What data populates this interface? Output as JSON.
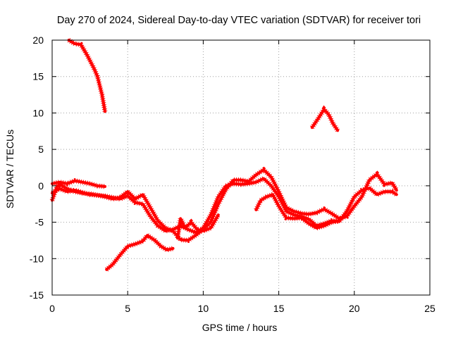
{
  "chart_data": {
    "type": "scatter",
    "title": "Day 270 of 2024, Sidereal Day-to-day VTEC variation (SDTVAR) for receiver tori",
    "xlabel": "GPS time / hours",
    "ylabel": "SDTVAR / TECUs",
    "xlim": [
      0,
      25
    ],
    "ylim": [
      -15,
      20
    ],
    "xticks": [
      0,
      5,
      10,
      15,
      20,
      25
    ],
    "yticks": [
      -15,
      -10,
      -5,
      0,
      5,
      10,
      15,
      20
    ],
    "grid": true,
    "legend": "none",
    "colors": {
      "series": "#ff0000",
      "grid": "#a0a0a0",
      "axis": "#000000"
    },
    "series": [
      {
        "name": "track-1",
        "points": [
          [
            1.1,
            20
          ],
          [
            1.5,
            19.5
          ],
          [
            1.9,
            19.4
          ],
          [
            2.3,
            18.0
          ],
          [
            2.8,
            16.0
          ],
          [
            3.0,
            15.0
          ],
          [
            3.3,
            12.5
          ],
          [
            3.5,
            10.2
          ]
        ]
      },
      {
        "name": "track-2",
        "points": [
          [
            17.2,
            8.0
          ],
          [
            17.6,
            9.2
          ],
          [
            18.0,
            10.5
          ],
          [
            18.3,
            9.8
          ],
          [
            18.6,
            8.5
          ],
          [
            18.9,
            7.6
          ]
        ]
      },
      {
        "name": "track-3",
        "points": [
          [
            0.0,
            0.3
          ],
          [
            0.5,
            0.5
          ],
          [
            1.0,
            0.3
          ],
          [
            1.5,
            0.7
          ],
          [
            2.0,
            0.5
          ],
          [
            2.5,
            0.3
          ],
          [
            3.0,
            0.0
          ],
          [
            3.5,
            -0.1
          ]
        ]
      },
      {
        "name": "track-4",
        "points": [
          [
            0.0,
            -1.0
          ],
          [
            0.5,
            -0.4
          ],
          [
            1.0,
            -0.8
          ],
          [
            1.5,
            -0.6
          ],
          [
            2.0,
            -0.9
          ],
          [
            2.5,
            -1.2
          ],
          [
            3.0,
            -1.3
          ],
          [
            3.5,
            -1.4
          ],
          [
            4.0,
            -1.6
          ],
          [
            4.5,
            -1.8
          ],
          [
            5.0,
            -1.4
          ],
          [
            5.5,
            -2.3
          ],
          [
            6.0,
            -2.5
          ],
          [
            6.5,
            -4.2
          ],
          [
            7.0,
            -5.5
          ],
          [
            7.5,
            -6.2
          ],
          [
            8.0,
            -6.0
          ],
          [
            8.5,
            -5.5
          ],
          [
            9.0,
            -6.0
          ],
          [
            9.5,
            -6.4
          ],
          [
            10.0,
            -5.8
          ],
          [
            10.5,
            -4.0
          ],
          [
            11.0,
            -1.5
          ],
          [
            11.5,
            0.0
          ],
          [
            12.0,
            0.3
          ],
          [
            12.5,
            0.2
          ],
          [
            13.0,
            0.3
          ],
          [
            13.5,
            0.5
          ],
          [
            14.0,
            1.0
          ],
          [
            14.5,
            0.0
          ],
          [
            15.0,
            -1.5
          ],
          [
            15.5,
            -3.5
          ],
          [
            16.0,
            -4.0
          ],
          [
            16.5,
            -4.2
          ],
          [
            17.0,
            -4.6
          ],
          [
            17.5,
            -5.5
          ],
          [
            18.0,
            -5.2
          ],
          [
            18.5,
            -4.8
          ],
          [
            19.0,
            -4.9
          ],
          [
            19.5,
            -3.5
          ],
          [
            20.0,
            -1.5
          ],
          [
            20.5,
            -0.6
          ],
          [
            21.0,
            -0.3
          ],
          [
            21.5,
            -1.2
          ],
          [
            22.0,
            -0.8
          ],
          [
            22.5,
            -0.8
          ],
          [
            22.8,
            -1.2
          ]
        ]
      },
      {
        "name": "track-5",
        "points": [
          [
            0.0,
            -2.0
          ],
          [
            0.3,
            -0.2
          ],
          [
            0.5,
            0.2
          ],
          [
            1.0,
            -0.4
          ],
          [
            1.5,
            -0.8
          ],
          [
            2.0,
            -1.0
          ],
          [
            2.5,
            -1.1
          ],
          [
            3.0,
            -1.3
          ],
          [
            3.5,
            -1.5
          ],
          [
            4.0,
            -1.8
          ],
          [
            4.5,
            -1.6
          ],
          [
            5.0,
            -0.8
          ],
          [
            5.5,
            -1.8
          ],
          [
            6.0,
            -1.2
          ],
          [
            6.5,
            -3.0
          ],
          [
            7.0,
            -4.8
          ],
          [
            7.5,
            -5.8
          ],
          [
            8.0,
            -6.2
          ],
          [
            8.5,
            -7.4
          ],
          [
            9.0,
            -7.5
          ],
          [
            9.5,
            -6.8
          ],
          [
            10.0,
            -6.0
          ],
          [
            10.5,
            -5.0
          ],
          [
            11.0,
            -2.5
          ],
          [
            11.5,
            -0.5
          ],
          [
            12.0,
            0.8
          ],
          [
            12.5,
            0.8
          ],
          [
            13.0,
            0.6
          ],
          [
            13.5,
            1.5
          ],
          [
            14.0,
            2.2
          ],
          [
            14.5,
            1.2
          ],
          [
            15.0,
            -0.8
          ],
          [
            15.5,
            -3.0
          ],
          [
            16.0,
            -3.5
          ],
          [
            16.5,
            -3.8
          ],
          [
            17.0,
            -3.9
          ],
          [
            17.5,
            -3.7
          ],
          [
            18.0,
            -3.2
          ],
          [
            18.5,
            -3.8
          ],
          [
            19.0,
            -4.5
          ],
          [
            19.5,
            -4.2
          ],
          [
            20.0,
            -2.8
          ],
          [
            20.5,
            -1.5
          ],
          [
            21.0,
            0.8
          ],
          [
            21.5,
            1.6
          ],
          [
            22.0,
            0.2
          ],
          [
            22.5,
            0.4
          ],
          [
            22.8,
            -0.6
          ]
        ]
      },
      {
        "name": "track-6",
        "points": [
          [
            3.6,
            -11.5
          ],
          [
            4.0,
            -10.8
          ],
          [
            4.5,
            -9.5
          ],
          [
            5.0,
            -8.3
          ],
          [
            5.5,
            -8.0
          ],
          [
            6.0,
            -7.6
          ],
          [
            6.3,
            -6.8
          ],
          [
            6.8,
            -7.5
          ],
          [
            7.2,
            -8.3
          ],
          [
            7.6,
            -8.8
          ],
          [
            8.0,
            -8.6
          ]
        ]
      },
      {
        "name": "track-7",
        "points": [
          [
            8.3,
            -7.2
          ],
          [
            8.5,
            -4.5
          ],
          [
            8.8,
            -5.8
          ],
          [
            9.2,
            -5.0
          ],
          [
            9.6,
            -6.0
          ],
          [
            10.0,
            -6.2
          ],
          [
            10.5,
            -5.8
          ],
          [
            11.0,
            -4.0
          ]
        ]
      },
      {
        "name": "track-8",
        "points": [
          [
            13.5,
            -3.3
          ],
          [
            13.8,
            -2.0
          ],
          [
            14.2,
            -1.5
          ],
          [
            14.6,
            -1.2
          ],
          [
            15.0,
            -2.8
          ],
          [
            15.5,
            -4.4
          ],
          [
            16.0,
            -4.5
          ],
          [
            16.5,
            -4.4
          ],
          [
            17.0,
            -5.2
          ],
          [
            17.5,
            -5.8
          ],
          [
            18.0,
            -5.5
          ],
          [
            18.5,
            -5.0
          ],
          [
            19.0,
            -4.8
          ]
        ]
      }
    ]
  }
}
